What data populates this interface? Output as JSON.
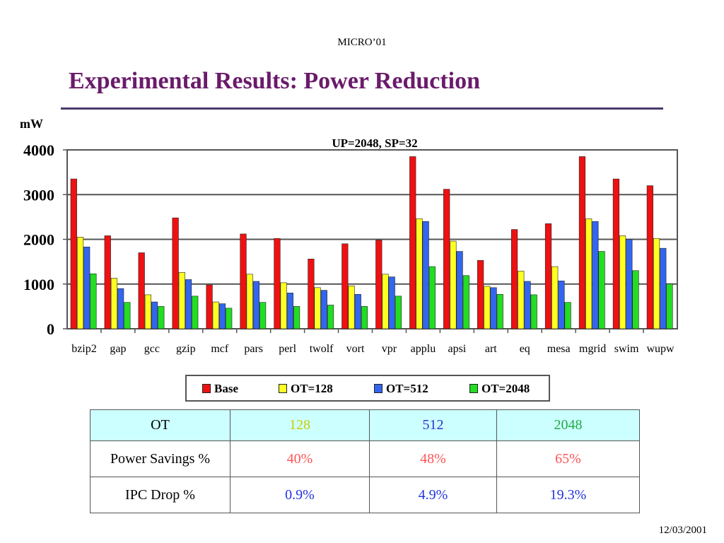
{
  "header": {
    "conference": "MICRO’01",
    "title": "Experimental Results: Power Reduction"
  },
  "chart_data": {
    "type": "bar",
    "title": "UP=2048, SP=32",
    "ylabel": "mW",
    "xlabel": "",
    "ylim": [
      0,
      4000
    ],
    "yticks": [
      "0",
      "1000",
      "2000",
      "3000",
      "4000"
    ],
    "grid": true,
    "legend_position": "bottom",
    "categories": [
      "bzip2",
      "gap",
      "gcc",
      "gzip",
      "mcf",
      "pars",
      "perl",
      "twolf",
      "vort",
      "vpr",
      "applu",
      "apsi",
      "art",
      "eq",
      "mesa",
      "mgrid",
      "swim",
      "wupw"
    ],
    "series": [
      {
        "name": "Base",
        "color": "#ee1111",
        "values": [
          3350,
          2080,
          1700,
          2480,
          980,
          2120,
          2020,
          1560,
          1900,
          1980,
          3850,
          3120,
          1530,
          2220,
          2350,
          3850,
          3350,
          3200
        ]
      },
      {
        "name": "OT=128",
        "color": "#ffff22",
        "values": [
          2050,
          1130,
          760,
          1260,
          600,
          1220,
          1030,
          920,
          960,
          1220,
          2460,
          1960,
          950,
          1290,
          1390,
          2460,
          2080,
          2020
        ]
      },
      {
        "name": "OT=512",
        "color": "#3366ee",
        "values": [
          1830,
          900,
          600,
          1100,
          560,
          1060,
          800,
          860,
          770,
          1160,
          2400,
          1730,
          920,
          1060,
          1070,
          2400,
          2000,
          1800
        ]
      },
      {
        "name": "OT=2048",
        "color": "#22dd22",
        "values": [
          1230,
          590,
          500,
          730,
          460,
          590,
          500,
          530,
          500,
          730,
          1390,
          1190,
          770,
          760,
          590,
          1730,
          1300,
          1000
        ]
      }
    ]
  },
  "table": {
    "header": [
      "OT",
      "128",
      "512",
      "2048"
    ],
    "rows": [
      {
        "label": "Power Savings %",
        "values": [
          "40%",
          "48%",
          "65%"
        ]
      },
      {
        "label": "IPC Drop %",
        "values": [
          "0.9%",
          "4.9%",
          "19.3%"
        ]
      }
    ]
  },
  "footer": {
    "date": "12/03/2001"
  }
}
